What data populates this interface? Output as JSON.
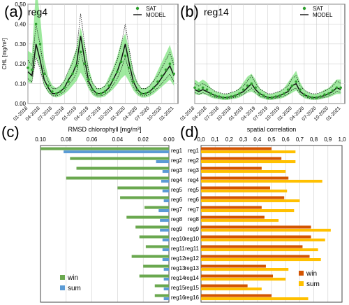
{
  "panels": {
    "a": {
      "letter": "(a)",
      "region": "reg4"
    },
    "b": {
      "letter": "(b)",
      "region": "reg14"
    },
    "c": {
      "letter": "(c)"
    },
    "d": {
      "letter": "(d)"
    }
  },
  "legend_timeseries": {
    "sat": "SAT",
    "model": "MODEL"
  },
  "colors": {
    "sat": "#2e9e2e",
    "sat_band": "#7fe37f",
    "model": "#111111",
    "win_c": "#6aa84f",
    "sum_c": "#5b9bd5",
    "win_d": "#d35400",
    "sum_d": "#ffc000",
    "grid": "#cfcfcf"
  },
  "chart_data": [
    {
      "id": "a",
      "type": "line",
      "title": "reg4",
      "ylabel": "CHL [mg/m³]",
      "ylim": [
        0,
        0.5
      ],
      "yticks": [
        "0.00",
        "0.10",
        "0.20",
        "0.30",
        "0.40",
        "0.50"
      ],
      "xlim": [
        0,
        37
      ],
      "xticks": [
        "01-2018",
        "04-2018",
        "07-2018",
        "10-2018",
        "01-2019",
        "04-2019",
        "07-2019",
        "10-2019",
        "01-2020",
        "04-2020",
        "07-2020",
        "10-2020",
        "01-2021"
      ],
      "series": [
        {
          "name": "MODEL",
          "x": [
            0,
            1,
            2,
            3,
            4,
            5,
            6,
            7,
            8,
            9,
            10,
            11,
            12,
            13,
            14,
            15,
            16,
            17,
            18,
            19,
            20,
            21,
            22,
            23,
            24,
            25,
            26,
            27,
            28,
            29,
            30,
            31,
            32,
            33,
            34,
            35,
            36
          ],
          "values": [
            0.16,
            0.14,
            0.3,
            0.22,
            0.12,
            0.08,
            0.05,
            0.05,
            0.06,
            0.08,
            0.12,
            0.15,
            0.2,
            0.34,
            0.22,
            0.11,
            0.07,
            0.05,
            0.05,
            0.06,
            0.08,
            0.12,
            0.16,
            0.22,
            0.3,
            0.2,
            0.11,
            0.07,
            0.05,
            0.05,
            0.06,
            0.08,
            0.1,
            0.13,
            0.16,
            0.19,
            0.14
          ]
        },
        {
          "name": "SAT",
          "x": [
            0,
            1,
            2,
            3,
            4,
            5,
            6,
            7,
            8,
            9,
            10,
            11,
            12,
            13,
            14,
            15,
            16,
            17,
            18,
            19,
            20,
            21,
            22,
            23,
            24,
            25,
            26,
            27,
            28,
            29,
            30,
            31,
            32,
            33,
            34,
            35,
            36
          ],
          "values": [
            0.18,
            0.17,
            0.4,
            0.3,
            0.15,
            0.09,
            0.06,
            0.05,
            0.06,
            0.08,
            0.11,
            0.15,
            0.19,
            0.26,
            0.2,
            0.12,
            0.07,
            0.05,
            0.05,
            0.06,
            0.09,
            0.12,
            0.16,
            0.21,
            0.24,
            0.18,
            0.11,
            0.07,
            0.05,
            0.05,
            0.06,
            0.08,
            0.11,
            0.14,
            0.17,
            0.2,
            0.15
          ]
        }
      ]
    },
    {
      "id": "b",
      "type": "line",
      "title": "reg14",
      "ylim": [
        0,
        0.5
      ],
      "xlim": [
        0,
        37
      ],
      "xticks": [
        "01-2018",
        "04-2018",
        "07-2018",
        "10-2018",
        "01-2019",
        "04-2019",
        "07-2019",
        "10-2019",
        "01-2020",
        "04-2020",
        "07-2020",
        "10-2020",
        "01-2021"
      ],
      "series": [
        {
          "name": "MODEL",
          "x": [
            0,
            1,
            2,
            3,
            4,
            5,
            6,
            7,
            8,
            9,
            10,
            11,
            12,
            13,
            14,
            15,
            16,
            17,
            18,
            19,
            20,
            21,
            22,
            23,
            24,
            25,
            26,
            27,
            28,
            29,
            30,
            31,
            32,
            33,
            34,
            35,
            36
          ],
          "values": [
            0.07,
            0.06,
            0.07,
            0.06,
            0.05,
            0.04,
            0.035,
            0.03,
            0.03,
            0.035,
            0.04,
            0.05,
            0.06,
            0.08,
            0.1,
            0.07,
            0.05,
            0.04,
            0.03,
            0.03,
            0.035,
            0.04,
            0.05,
            0.06,
            0.09,
            0.1,
            0.06,
            0.045,
            0.035,
            0.03,
            0.03,
            0.035,
            0.04,
            0.05,
            0.06,
            0.08,
            0.07
          ]
        },
        {
          "name": "SAT",
          "x": [
            0,
            1,
            2,
            3,
            4,
            5,
            6,
            7,
            8,
            9,
            10,
            11,
            12,
            13,
            14,
            15,
            16,
            17,
            18,
            19,
            20,
            21,
            22,
            23,
            24,
            25,
            26,
            27,
            28,
            29,
            30,
            31,
            32,
            33,
            34,
            35,
            36
          ],
          "values": [
            0.08,
            0.07,
            0.08,
            0.07,
            0.05,
            0.04,
            0.035,
            0.03,
            0.03,
            0.035,
            0.04,
            0.05,
            0.07,
            0.09,
            0.1,
            0.08,
            0.05,
            0.04,
            0.03,
            0.03,
            0.035,
            0.04,
            0.05,
            0.07,
            0.09,
            0.11,
            0.07,
            0.045,
            0.035,
            0.03,
            0.03,
            0.035,
            0.045,
            0.05,
            0.065,
            0.08,
            0.08
          ]
        }
      ]
    },
    {
      "id": "c",
      "type": "bar",
      "title": "RMSD chlorophyll [mg/m³]",
      "orientation": "horizontal-reversed",
      "xlim": [
        0,
        0.1
      ],
      "xticks": [
        "0.10",
        "0.08",
        "0.06",
        "0.04",
        "0.02",
        "0.00"
      ],
      "categories": [
        "reg1",
        "reg2",
        "reg3",
        "reg4",
        "reg5",
        "reg6",
        "reg7",
        "reg8",
        "reg9",
        "reg10",
        "reg11",
        "reg12",
        "reg13",
        "reg14",
        "reg15",
        "reg16"
      ],
      "series": [
        {
          "name": "win",
          "values": [
            0.1,
            0.077,
            0.072,
            0.08,
            0.04,
            0.038,
            0.019,
            0.033,
            0.026,
            0.023,
            0.018,
            0.029,
            0.02,
            0.023,
            0.011,
            0.011
          ]
        },
        {
          "name": "sum",
          "values": [
            0.082,
            0.01,
            0.005,
            0.006,
            0.005,
            0.004,
            0.008,
            0.007,
            0.007,
            0.005,
            0.005,
            0.005,
            0.004,
            0.004,
            0.004,
            0.004
          ]
        }
      ],
      "legend": {
        "position": "bottom-left"
      }
    },
    {
      "id": "d",
      "type": "bar",
      "title": "spatial correlation",
      "orientation": "horizontal",
      "xlim": [
        0,
        1
      ],
      "xticks": [
        "0,0",
        "0,1",
        "0,2",
        "0,3",
        "0,4",
        "0,5",
        "0,6",
        "0,7",
        "0,8",
        "0,9",
        "1,0"
      ],
      "categories": [
        "reg1",
        "reg2",
        "reg3",
        "reg4",
        "reg5",
        "reg6",
        "reg7",
        "reg8",
        "reg9",
        "reg10",
        "reg11",
        "reg12",
        "reg13",
        "reg14",
        "reg15",
        "reg16"
      ],
      "series": [
        {
          "name": "win",
          "values": [
            0.5,
            0.57,
            0.43,
            0.62,
            0.49,
            0.59,
            0.43,
            0.45,
            0.78,
            0.78,
            0.72,
            0.77,
            0.46,
            0.51,
            0.33,
            0.5
          ]
        },
        {
          "name": "sum",
          "values": [
            0.67,
            0.67,
            0.6,
            0.86,
            0.61,
            0.7,
            0.66,
            0.55,
            0.92,
            0.88,
            0.83,
            0.85,
            0.62,
            0.6,
            0.43,
            0.76
          ]
        }
      ],
      "legend": {
        "position": "bottom-right"
      }
    }
  ]
}
